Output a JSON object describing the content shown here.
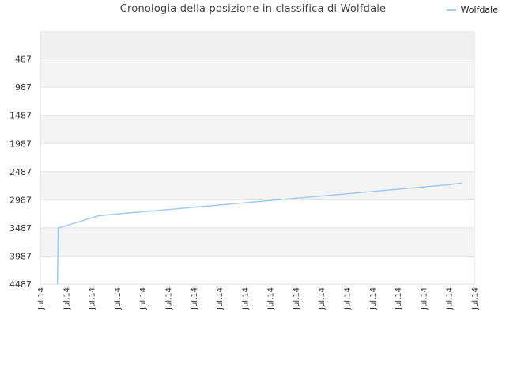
{
  "chart_data": {
    "type": "line",
    "title": "Cronologia della posizione in classifica di Wolfdale",
    "xlabel": "",
    "ylabel": "",
    "y_inverted": true,
    "ylim": [
      4487,
      0
    ],
    "y_ticks": [
      "487",
      "987",
      "1487",
      "1987",
      "2487",
      "2987",
      "3487",
      "3987",
      "4487"
    ],
    "x_ticks": [
      "Jul.14",
      "Jul.14",
      "Jul.14",
      "Jul.14",
      "Jul.14",
      "Jul.14",
      "Jul.14",
      "Jul.14",
      "Jul.14",
      "Jul.14",
      "Jul.14",
      "Jul.14",
      "Jul.14",
      "Jul.14",
      "Jul.14",
      "Jul.14",
      "Jul.14",
      "Jul.14"
    ],
    "grid": true,
    "legend_position": "top-right",
    "series": [
      {
        "name": "Wolfdale",
        "color": "#9fcbef",
        "x": [
          0.67,
          0.7,
          1.0,
          1.5,
          2.0,
          2.3,
          3.0,
          4.0,
          5.0,
          6.0,
          7.0,
          8.0,
          9.0,
          10.0,
          11.0,
          12.0,
          13.0,
          14.0,
          15.0,
          16.0,
          16.5
        ],
        "values": [
          4487,
          3487,
          3450,
          3380,
          3310,
          3270,
          3240,
          3200,
          3160,
          3120,
          3080,
          3040,
          3000,
          2960,
          2920,
          2880,
          2840,
          2800,
          2760,
          2720,
          2690
        ]
      }
    ]
  }
}
